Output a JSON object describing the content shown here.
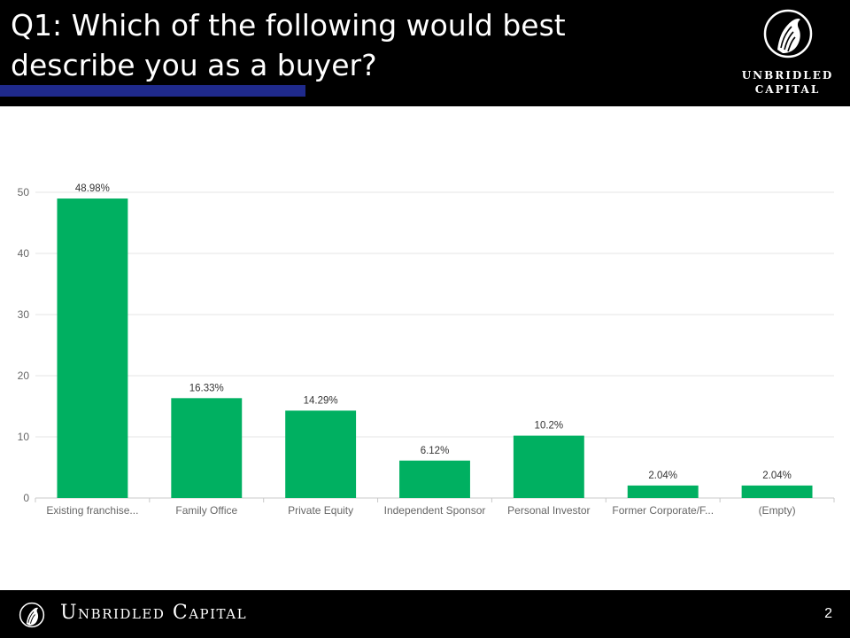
{
  "slide": {
    "title": "Q1: Which of the following would best describe you as a buyer?",
    "page_number": "2"
  },
  "logo": {
    "line1": "UNBRIDLED",
    "line2": "CAPITAL",
    "icon": "horse-head-icon"
  },
  "footer": {
    "brand": "Unbridled Capital",
    "icon": "horse-head-icon"
  },
  "colors": {
    "bar": "#00B061",
    "header_bg": "#000000",
    "accent_bar": "#1F2A8C",
    "grid": "#E6E6E6",
    "axis": "#C8C8C8"
  },
  "chart_data": {
    "type": "bar",
    "categories": [
      "Existing franchise...",
      "Family Office",
      "Private Equity",
      "Independent Sponsor",
      "Personal Investor",
      "Former Corporate/F...",
      "(Empty)"
    ],
    "values": [
      48.98,
      16.33,
      14.29,
      6.12,
      10.2,
      2.04,
      2.04
    ],
    "data_labels": [
      "48.98%",
      "16.33%",
      "14.29%",
      "6.12%",
      "10.2%",
      "2.04%",
      "2.04%"
    ],
    "yticks": [
      "0",
      "10",
      "20",
      "30",
      "40",
      "50"
    ],
    "ylim": [
      0,
      50
    ],
    "grid": true,
    "legend": "none"
  }
}
